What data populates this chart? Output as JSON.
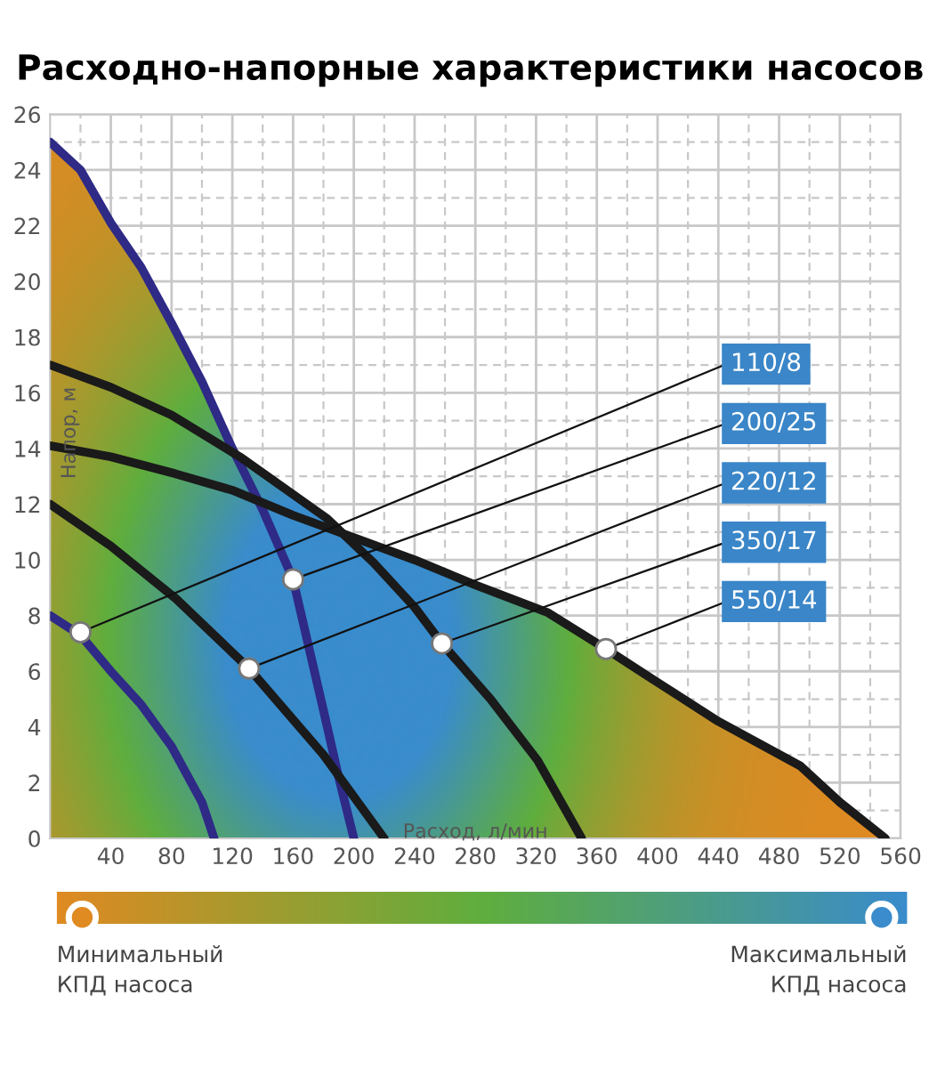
{
  "chart_data": {
    "type": "line",
    "title": "Расходно-напорные характеристики насосов",
    "xlabel": "Расход, л/мин",
    "ylabel": "Напор, м",
    "xlim": [
      0,
      560
    ],
    "xticks": [
      40,
      80,
      120,
      160,
      200,
      240,
      280,
      320,
      360,
      400,
      440,
      480,
      520,
      560
    ],
    "ylim": [
      0,
      26
    ],
    "yticks": [
      0,
      2,
      4,
      6,
      8,
      10,
      12,
      14,
      16,
      18,
      20,
      22,
      24,
      26
    ],
    "grid": true,
    "marker": "none",
    "line_style": "solid",
    "series": [
      {
        "color": "#2e2a86",
        "x": [
          0,
          20,
          40,
          60,
          80,
          100,
          108
        ],
        "values": [
          8,
          7.3,
          6.0,
          4.8,
          3.3,
          1.3,
          0
        ]
      },
      {
        "color": "#2e2a86",
        "x": [
          0,
          20,
          40,
          60,
          80,
          100,
          120,
          140,
          160,
          180,
          190,
          200
        ],
        "values": [
          25,
          24,
          22.1,
          20.5,
          18.5,
          16.4,
          14,
          11.8,
          9.3,
          4.6,
          2.2,
          0
        ]
      },
      {
        "color": "#1a1a1a",
        "x": [
          0,
          40,
          83,
          131,
          180,
          220
        ],
        "values": [
          12,
          10.5,
          8.6,
          6.1,
          3.0,
          0
        ]
      },
      {
        "color": "#1a1a1a",
        "x": [
          0,
          40,
          80,
          125,
          182,
          213,
          240,
          258,
          290,
          321,
          350
        ],
        "values": [
          17,
          16.2,
          15.2,
          13.7,
          11.5,
          9.9,
          8.3,
          7.0,
          5.0,
          2.8,
          0
        ]
      },
      {
        "color": "#1a1a1a",
        "x": [
          0,
          40,
          82,
          120,
          160,
          200,
          240,
          280,
          328,
          366,
          400,
          440,
          494,
          520,
          550
        ],
        "values": [
          14.1,
          13.7,
          13.1,
          12.5,
          11.6,
          10.8,
          10.0,
          9.1,
          8.1,
          6.8,
          5.6,
          4.2,
          2.6,
          1.3,
          0
        ]
      }
    ],
    "annotations": [
      {
        "text": "110/8",
        "x": 20,
        "y": 7.4
      },
      {
        "text": "200/25",
        "x": 160,
        "y": 9.3
      },
      {
        "text": "220/12",
        "x": 131,
        "y": 6.1
      },
      {
        "text": "350/17",
        "x": 258,
        "y": 7.0
      },
      {
        "text": "550/14",
        "x": 366,
        "y": 6.8
      },
      "Минимальный\nКПД насоса",
      "Максимальный\nКПД насоса"
    ]
  }
}
